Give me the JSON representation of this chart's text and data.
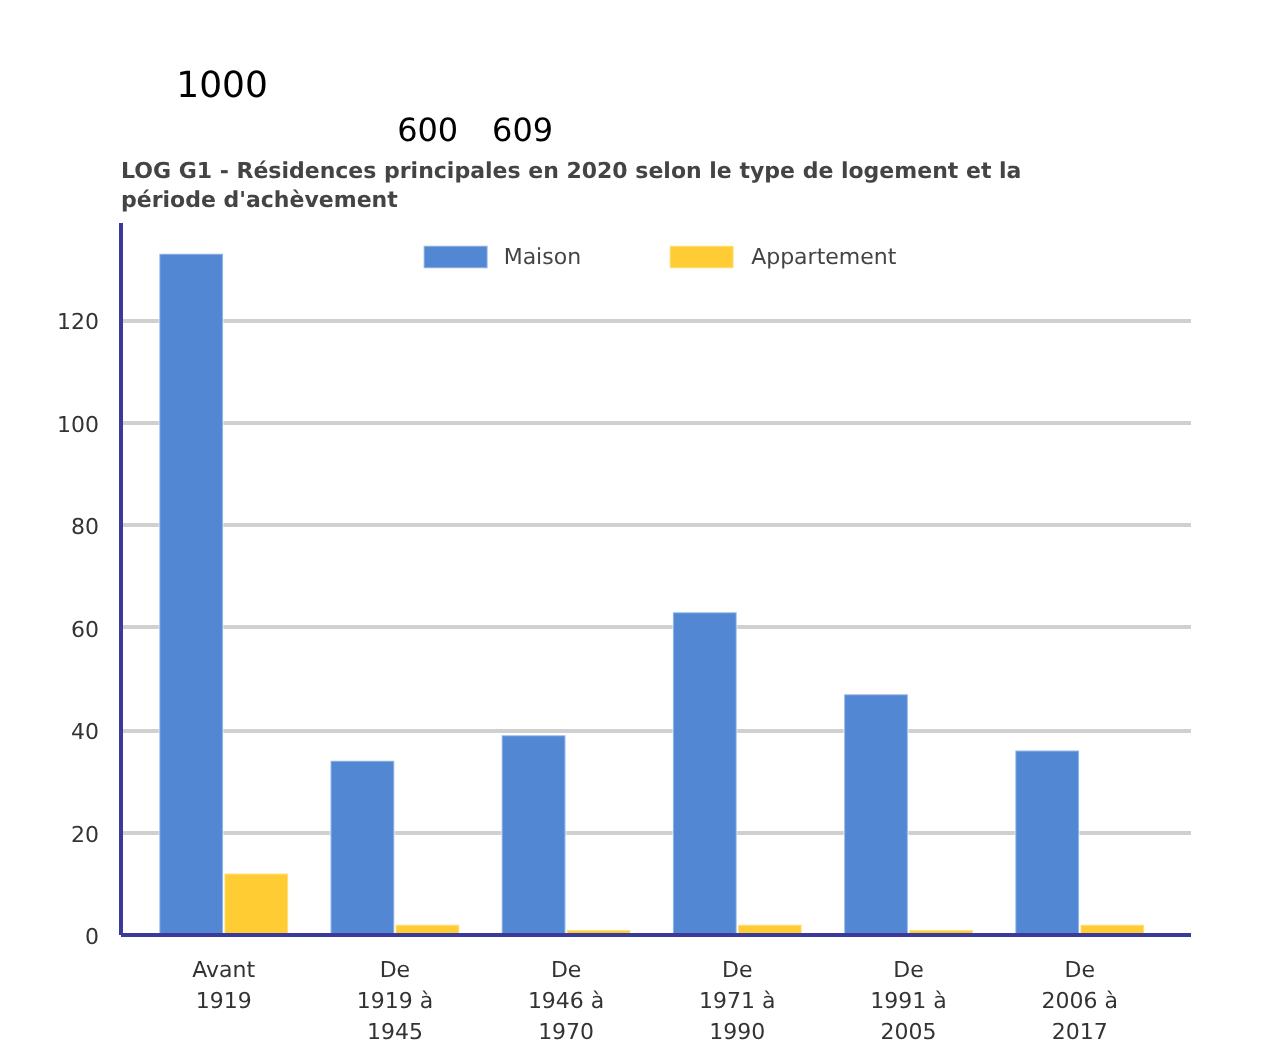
{
  "chart_data": {
    "type": "bar",
    "title": "LOG G1 - Résidences principales en 2020 selon le type de logement et la période d'achèvement",
    "categories": [
      "Avant 1919",
      "De 1919 à 1945",
      "De 1946 à 1970",
      "De 1971 à 1990",
      "De 1991 à 2005",
      "De 2006 à 2017"
    ],
    "series": [
      {
        "name": "Maison",
        "color": "#5187d3",
        "values": [
          133,
          34,
          39,
          63,
          47,
          36
        ]
      },
      {
        "name": "Appartement",
        "color": "#ffcc33",
        "values": [
          12,
          2,
          1,
          2,
          1,
          2
        ]
      }
    ],
    "ylim": [
      0,
      139
    ],
    "yticks": [
      0,
      20,
      40,
      60,
      80,
      100,
      120
    ],
    "grid": "y",
    "legend": "top",
    "annotations": [
      "1000",
      "600",
      "609"
    ]
  }
}
